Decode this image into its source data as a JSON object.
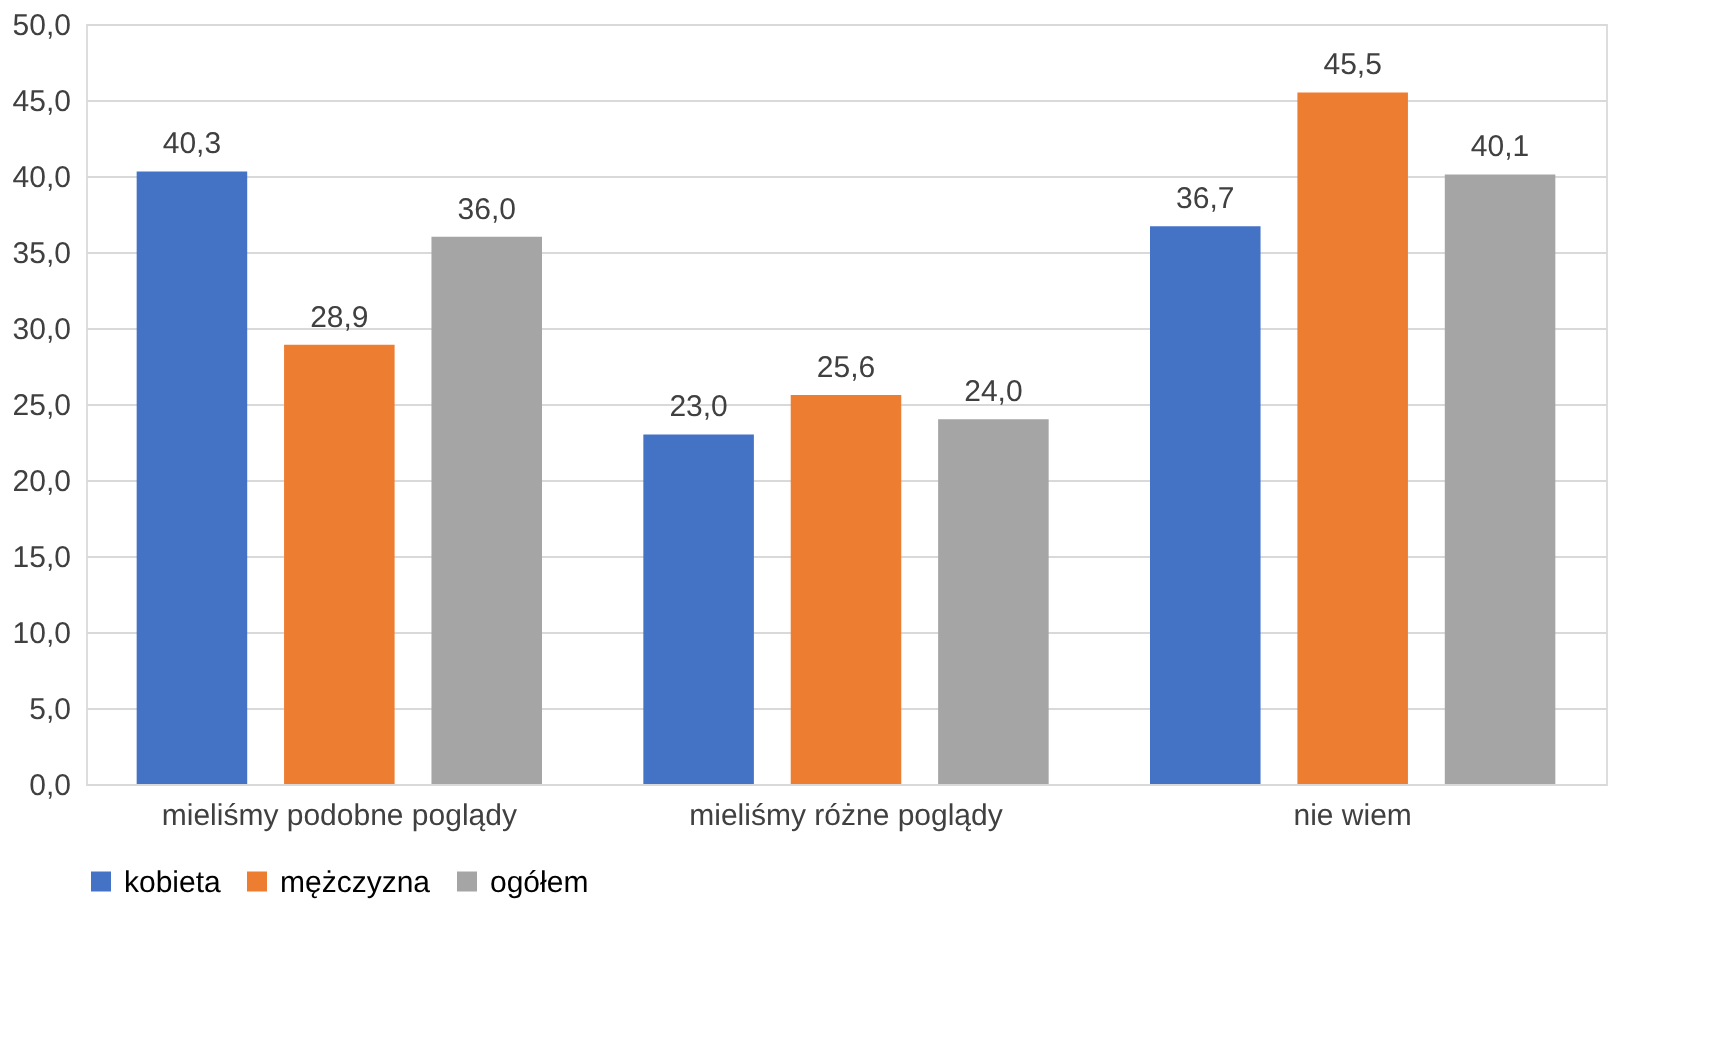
{
  "chart_data": {
    "type": "bar",
    "categories": [
      "mieliśmy podobne poglądy",
      "mieliśmy różne poglądy",
      "nie wiem"
    ],
    "series": [
      {
        "name": "kobieta",
        "color": "#4472c4",
        "values": [
          40.3,
          23.0,
          36.7
        ],
        "value_labels": [
          "40,3",
          "23,0",
          "36,7"
        ]
      },
      {
        "name": "mężczyzna",
        "color": "#ed7d31",
        "values": [
          28.9,
          25.6,
          45.5
        ],
        "value_labels": [
          "28,9",
          "25,6",
          "45,5"
        ]
      },
      {
        "name": "ogółem",
        "color": "#a5a5a5",
        "values": [
          36.0,
          24.0,
          40.1
        ],
        "value_labels": [
          "36,0",
          "24,0",
          "40,1"
        ]
      }
    ],
    "ylim": [
      0,
      50
    ],
    "yticks": [
      {
        "value": 0,
        "label": "0,0"
      },
      {
        "value": 5,
        "label": "5,0"
      },
      {
        "value": 10,
        "label": "10,0"
      },
      {
        "value": 15,
        "label": "15,0"
      },
      {
        "value": 20,
        "label": "20,0"
      },
      {
        "value": 25,
        "label": "25,0"
      },
      {
        "value": 30,
        "label": "30,0"
      },
      {
        "value": 35,
        "label": "35,0"
      },
      {
        "value": 40,
        "label": "40,0"
      },
      {
        "value": 45,
        "label": "45,0"
      },
      {
        "value": 50,
        "label": "50,0"
      }
    ],
    "grid": "y",
    "legend": "bottom"
  }
}
